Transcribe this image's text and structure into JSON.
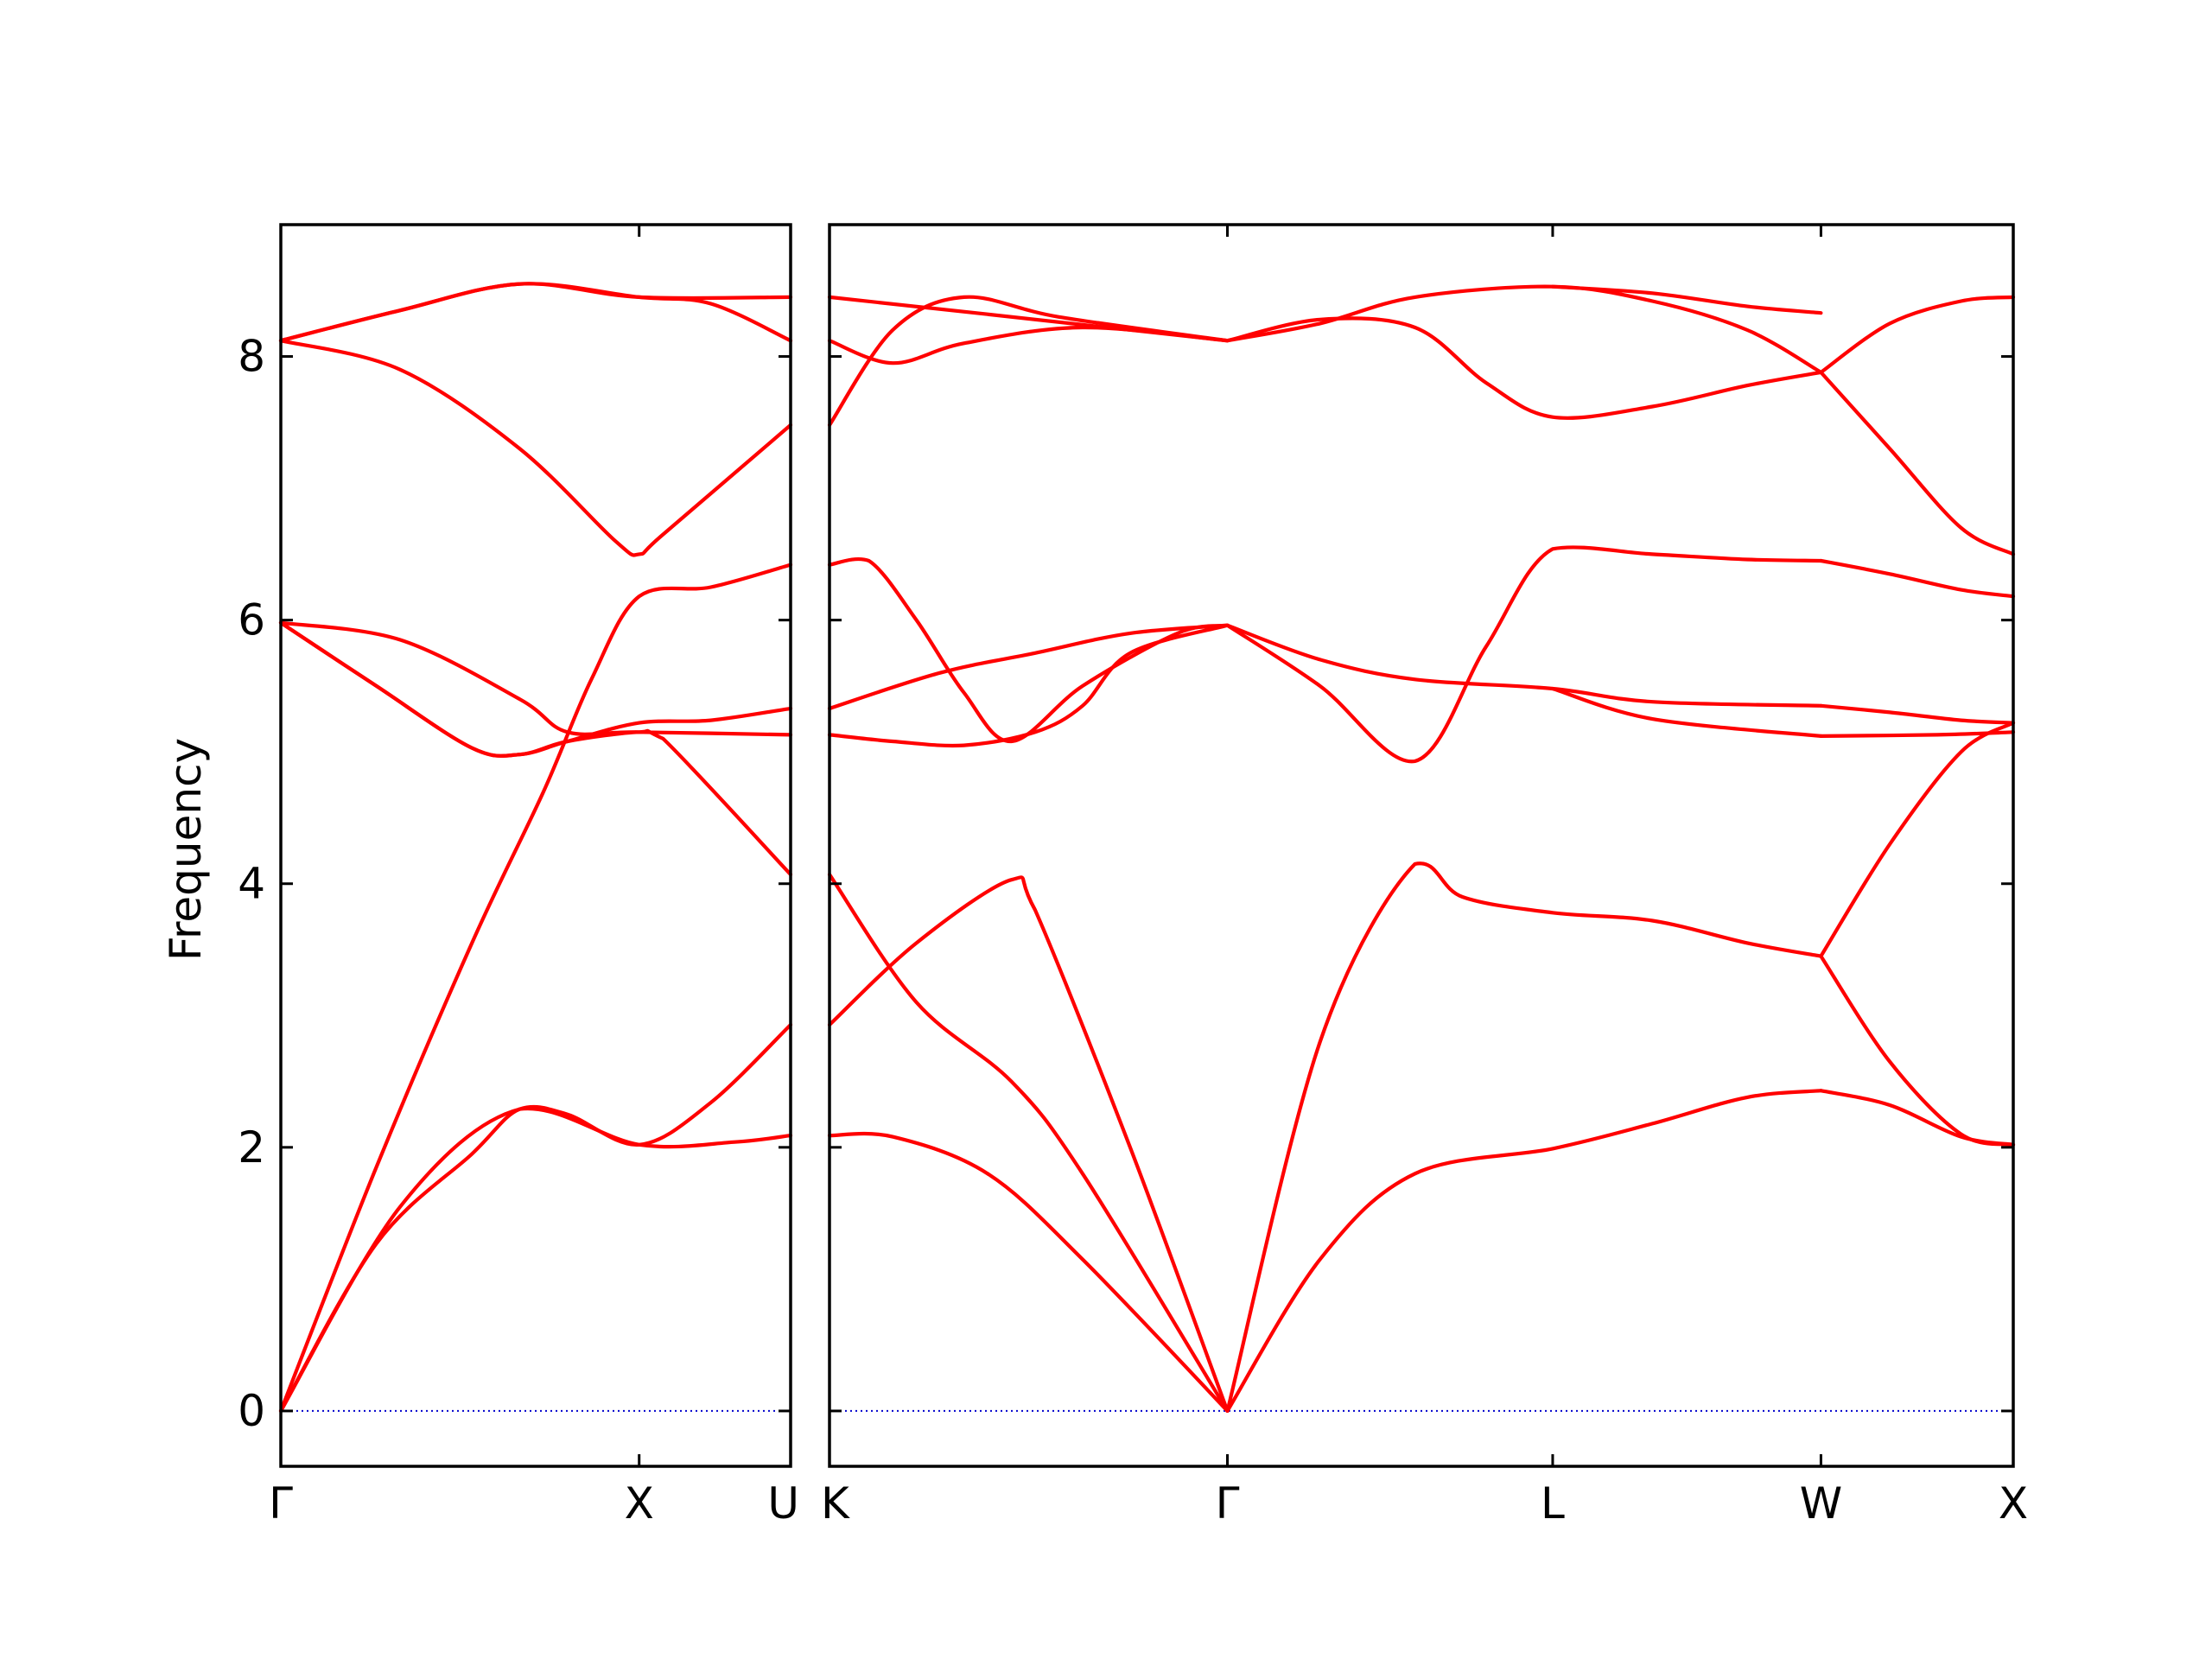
{
  "chart_data": {
    "type": "line",
    "ylabel": "Frequency",
    "ylim": [
      -0.42,
      9.0
    ],
    "yticks": [
      0,
      2,
      4,
      6,
      8
    ],
    "grid": false,
    "legend": "none",
    "colors": {
      "bands": "#ff0000",
      "zero_line": "#0000cc",
      "axes": "#000000"
    },
    "panels": [
      {
        "name": "left",
        "xlim": [
          0,
          1.067
        ],
        "xticks": [
          {
            "x": 0,
            "label": "Γ"
          },
          {
            "x": 0.75,
            "label": "X"
          },
          {
            "x": 1.067,
            "label": "U"
          }
        ],
        "bands": [
          [
            [
              0,
              0
            ],
            [
              0.25,
              1.55
            ],
            [
              0.5,
              2.29
            ],
            [
              0.75,
              2.02
            ],
            [
              0.95,
              2.04
            ],
            [
              1.067,
              2.09
            ]
          ],
          [
            [
              0,
              0
            ],
            [
              0.2,
              1.27
            ],
            [
              0.4,
              1.95
            ],
            [
              0.5,
              2.29
            ],
            [
              0.6,
              2.25
            ],
            [
              0.75,
              2.02
            ],
            [
              0.9,
              2.34
            ],
            [
              1.067,
              2.93
            ]
          ],
          [
            [
              0,
              0
            ],
            [
              0.2,
              1.85
            ],
            [
              0.4,
              3.55
            ],
            [
              0.55,
              4.7
            ],
            [
              0.65,
              5.55
            ],
            [
              0.75,
              6.18
            ],
            [
              0.9,
              6.25
            ],
            [
              1.067,
              6.42
            ]
          ],
          [
            [
              0,
              5.98
            ],
            [
              0.25,
              5.85
            ],
            [
              0.5,
              5.4
            ],
            [
              0.6,
              5.15
            ],
            [
              0.75,
              5.15
            ],
            [
              1.067,
              5.13
            ]
          ],
          [
            [
              0,
              5.98
            ],
            [
              0.2,
              5.5
            ],
            [
              0.4,
              5.03
            ],
            [
              0.5,
              4.98
            ],
            [
              0.6,
              5.08
            ],
            [
              0.75,
              5.22
            ],
            [
              0.9,
              5.24
            ],
            [
              1.067,
              5.33
            ]
          ],
          [
            [
              0,
              5.98
            ],
            [
              0.2,
              5.5
            ],
            [
              0.4,
              5.03
            ],
            [
              0.5,
              4.98
            ],
            [
              0.6,
              5.08
            ],
            [
              0.75,
              5.15
            ],
            [
              0.8,
              5.1
            ],
            [
              1.067,
              4.07
            ]
          ],
          [
            [
              0,
              8.12
            ],
            [
              0.25,
              7.9
            ],
            [
              0.5,
              7.3
            ],
            [
              0.7,
              6.6
            ],
            [
              0.75,
              6.5
            ],
            [
              0.8,
              6.65
            ],
            [
              1.067,
              7.48
            ]
          ],
          [
            [
              0,
              8.12
            ],
            [
              0.25,
              8.35
            ],
            [
              0.5,
              8.55
            ],
            [
              0.75,
              8.45
            ],
            [
              0.9,
              8.4
            ],
            [
              1.067,
              8.12
            ]
          ],
          [
            [
              0,
              8.12
            ],
            [
              0.25,
              8.35
            ],
            [
              0.5,
              8.55
            ],
            [
              0.75,
              8.45
            ],
            [
              1.067,
              8.45
            ]
          ]
        ]
      },
      {
        "name": "right",
        "xlim": [
          1.067,
          3.56
        ],
        "xticks": [
          {
            "x": 1.067,
            "label": "K"
          },
          {
            "x": 1.905,
            "label": "Γ"
          },
          {
            "x": 2.59,
            "label": "L"
          },
          {
            "x": 3.155,
            "label": "W"
          },
          {
            "x": 3.56,
            "label": "X"
          }
        ],
        "bands": [
          [
            [
              1.067,
              2.09
            ],
            [
              1.2,
              2.08
            ],
            [
              1.4,
              1.8
            ],
            [
              1.6,
              1.15
            ],
            [
              1.905,
              0
            ]
          ],
          [
            [
              1.067,
              2.93
            ],
            [
              1.25,
              3.55
            ],
            [
              1.45,
              4.03
            ],
            [
              1.5,
              3.8
            ],
            [
              1.7,
              2.0
            ],
            [
              1.905,
              0
            ]
          ],
          [
            [
              1.067,
              4.07
            ],
            [
              1.25,
              3.1
            ],
            [
              1.45,
              2.5
            ],
            [
              1.6,
              1.8
            ],
            [
              1.905,
              0
            ]
          ],
          [
            [
              1.067,
              5.13
            ],
            [
              1.2,
              5.08
            ],
            [
              1.35,
              5.05
            ],
            [
              1.5,
              5.15
            ],
            [
              1.6,
              5.35
            ],
            [
              1.7,
              5.75
            ],
            [
              1.905,
              5.96
            ]
          ],
          [
            [
              1.067,
              6.42
            ],
            [
              1.15,
              6.45
            ],
            [
              1.25,
              6.0
            ],
            [
              1.35,
              5.45
            ],
            [
              1.45,
              5.08
            ],
            [
              1.6,
              5.5
            ],
            [
              1.8,
              5.9
            ],
            [
              1.905,
              5.96
            ]
          ],
          [
            [
              1.067,
              5.33
            ],
            [
              1.3,
              5.6
            ],
            [
              1.5,
              5.75
            ],
            [
              1.7,
              5.9
            ],
            [
              1.905,
              5.96
            ]
          ],
          [
            [
              1.067,
              7.48
            ],
            [
              1.2,
              8.2
            ],
            [
              1.35,
              8.45
            ],
            [
              1.55,
              8.3
            ],
            [
              1.905,
              8.12
            ]
          ],
          [
            [
              1.067,
              8.12
            ],
            [
              1.2,
              7.95
            ],
            [
              1.35,
              8.1
            ],
            [
              1.6,
              8.22
            ],
            [
              1.905,
              8.12
            ]
          ],
          [
            [
              1.067,
              8.45
            ],
            [
              1.4,
              8.32
            ],
            [
              1.905,
              8.12
            ]
          ],
          [
            [
              1.905,
              0
            ],
            [
              2.1,
              2.8
            ],
            [
              2.3,
              4.15
            ],
            [
              2.4,
              3.9
            ],
            [
              2.59,
              3.78
            ],
            [
              2.8,
              3.72
            ],
            [
              3.0,
              3.55
            ],
            [
              3.155,
              3.45
            ]
          ],
          [
            [
              1.905,
              0
            ],
            [
              2.1,
              1.15
            ],
            [
              2.3,
              1.8
            ],
            [
              2.59,
              1.99
            ],
            [
              2.8,
              2.18
            ],
            [
              3.0,
              2.38
            ],
            [
              3.155,
              2.43
            ]
          ],
          [
            [
              1.905,
              5.96
            ],
            [
              2.1,
              5.5
            ],
            [
              2.3,
              4.93
            ],
            [
              2.45,
              5.8
            ],
            [
              2.59,
              6.54
            ],
            [
              2.8,
              6.5
            ],
            [
              3.0,
              6.46
            ],
            [
              3.155,
              6.45
            ]
          ],
          [
            [
              1.905,
              5.96
            ],
            [
              2.1,
              5.7
            ],
            [
              2.3,
              5.55
            ],
            [
              2.59,
              5.48
            ],
            [
              2.8,
              5.38
            ],
            [
              3.155,
              5.35
            ]
          ],
          [
            [
              2.59,
              5.48
            ],
            [
              2.8,
              5.25
            ],
            [
              3.155,
              5.12
            ]
          ],
          [
            [
              1.905,
              8.12
            ],
            [
              2.1,
              8.28
            ],
            [
              2.3,
              8.22
            ],
            [
              2.45,
              7.8
            ],
            [
              2.59,
              7.54
            ],
            [
              2.8,
              7.62
            ],
            [
              3.0,
              7.78
            ],
            [
              3.155,
              7.88
            ]
          ],
          [
            [
              1.905,
              8.12
            ],
            [
              2.1,
              8.25
            ],
            [
              2.3,
              8.45
            ],
            [
              2.59,
              8.53
            ],
            [
              2.8,
              8.42
            ],
            [
              3.0,
              8.2
            ],
            [
              3.155,
              7.88
            ]
          ],
          [
            [
              2.59,
              8.53
            ],
            [
              2.8,
              8.48
            ],
            [
              3.0,
              8.38
            ],
            [
              3.155,
              8.33
            ]
          ],
          [
            [
              3.155,
              3.45
            ],
            [
              3.3,
              2.65
            ],
            [
              3.45,
              2.1
            ],
            [
              3.56,
              2.02
            ]
          ],
          [
            [
              3.155,
              3.45
            ],
            [
              3.3,
              4.3
            ],
            [
              3.45,
              5.0
            ],
            [
              3.56,
              5.22
            ]
          ],
          [
            [
              3.155,
              2.43
            ],
            [
              3.3,
              2.32
            ],
            [
              3.45,
              2.08
            ],
            [
              3.56,
              2.02
            ]
          ],
          [
            [
              3.155,
              5.35
            ],
            [
              3.3,
              5.3
            ],
            [
              3.45,
              5.24
            ],
            [
              3.56,
              5.22
            ]
          ],
          [
            [
              3.155,
              5.12
            ],
            [
              3.4,
              5.13
            ],
            [
              3.56,
              5.15
            ]
          ],
          [
            [
              3.155,
              6.45
            ],
            [
              3.3,
              6.35
            ],
            [
              3.45,
              6.23
            ],
            [
              3.56,
              6.18
            ]
          ],
          [
            [
              3.155,
              7.88
            ],
            [
              3.3,
              7.3
            ],
            [
              3.45,
              6.7
            ],
            [
              3.56,
              6.5
            ]
          ],
          [
            [
              3.155,
              7.88
            ],
            [
              3.3,
              8.25
            ],
            [
              3.45,
              8.42
            ],
            [
              3.56,
              8.45
            ]
          ]
        ]
      }
    ]
  }
}
